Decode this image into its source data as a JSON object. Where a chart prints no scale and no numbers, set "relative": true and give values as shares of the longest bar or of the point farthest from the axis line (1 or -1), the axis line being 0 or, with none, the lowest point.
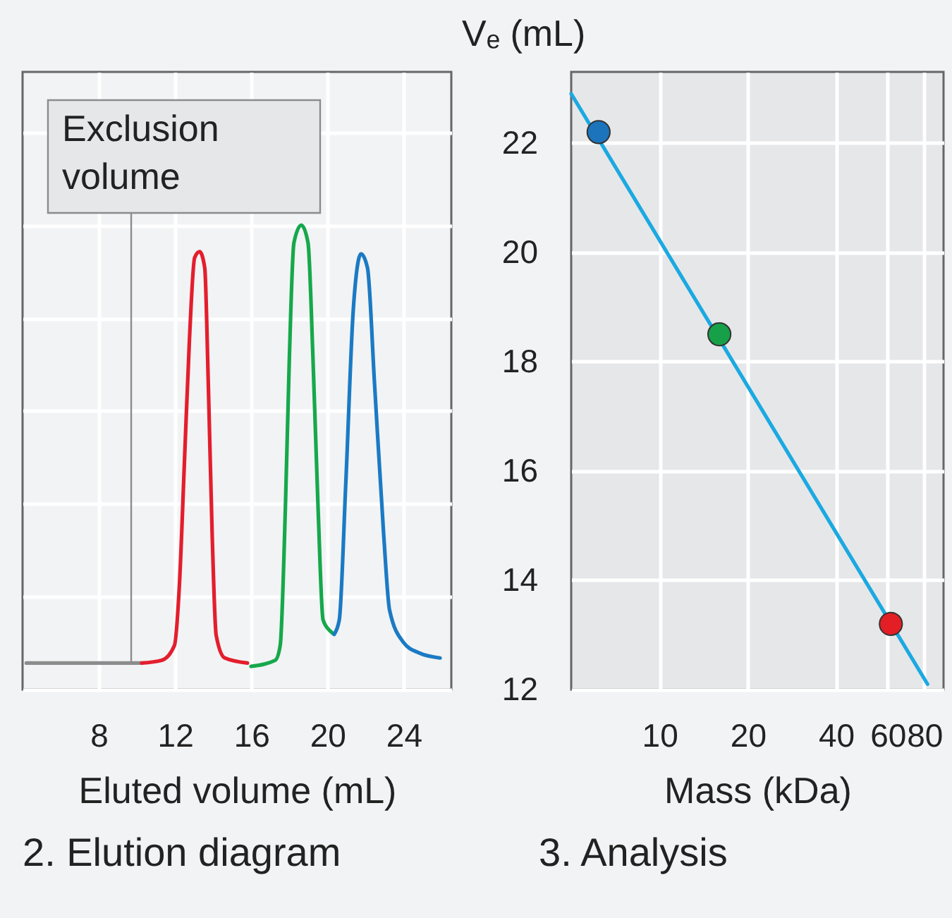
{
  "chart_data": [
    {
      "type": "line",
      "title": "2. Elution diagram",
      "xlabel": "Eluted volume (mL)",
      "relative": true,
      "xlim": [
        4,
        26.5
      ],
      "xticks": [
        8,
        12,
        16,
        20,
        24
      ],
      "grid": true,
      "tick_labels": "x",
      "line_style": "solid",
      "annotations": [
        {
          "text": "Exclusion volume",
          "x": 9.7,
          "y": 0.057
        }
      ],
      "series": [
        {
          "color": "#8c8c8c",
          "x": [
            4.2,
            10.25
          ],
          "values": [
            0.057,
            0.057
          ]
        },
        {
          "color": "#e31e2d",
          "x": [
            10.25,
            11.3,
            11.97,
            12.23,
            12.5,
            12.76,
            13.03,
            13.29,
            13.56,
            13.74,
            13.95,
            14.16,
            14.61,
            15.8
          ],
          "values": [
            0.057,
            0.063,
            0.095,
            0.225,
            0.496,
            0.756,
            0.93,
            0.943,
            0.908,
            0.67,
            0.334,
            0.117,
            0.068,
            0.057
          ]
        },
        {
          "color": "#16a84c",
          "x": [
            15.99,
            17.26,
            17.52,
            17.79,
            18.0,
            18.24,
            18.63,
            18.98,
            19.24,
            19.51,
            19.77,
            20.17,
            20.35
          ],
          "values": [
            0.05,
            0.063,
            0.095,
            0.388,
            0.713,
            0.962,
            1,
            0.962,
            0.713,
            0.388,
            0.15,
            0.125,
            0.119
          ]
        },
        {
          "color": "#1b7ac4",
          "x": [
            20.35,
            20.62,
            20.96,
            21.36,
            21.76,
            22.1,
            22.47,
            22.95,
            23.26,
            24.0,
            24.8,
            25.91
          ],
          "values": [
            0.119,
            0.15,
            0.442,
            0.821,
            0.938,
            0.908,
            0.659,
            0.334,
            0.171,
            0.101,
            0.079,
            0.068
          ]
        }
      ]
    },
    {
      "type": "scatter",
      "title": "3. Analysis",
      "xlabel": "Mass (kDa)",
      "ylabel": "Vₑ (mL)",
      "log": "x",
      "xlim": [
        5,
        93
      ],
      "xticks": [
        10,
        20,
        40,
        60,
        80
      ],
      "ylim": [
        12,
        23.3
      ],
      "yticks": [
        12,
        14,
        16,
        18,
        20,
        22
      ],
      "grid": true,
      "series": [
        {
          "type": "line",
          "color": "#1ba9e1",
          "x": [
            5,
            82
          ],
          "values": [
            22.9,
            12.1
          ]
        },
        {
          "marker": "circle",
          "colors": [
            "#1c74bd",
            "#16a148",
            "#e31e25"
          ],
          "x": [
            6.2,
            16,
            61.5
          ],
          "values": [
            22.2,
            18.5,
            13.2
          ]
        }
      ]
    }
  ]
}
